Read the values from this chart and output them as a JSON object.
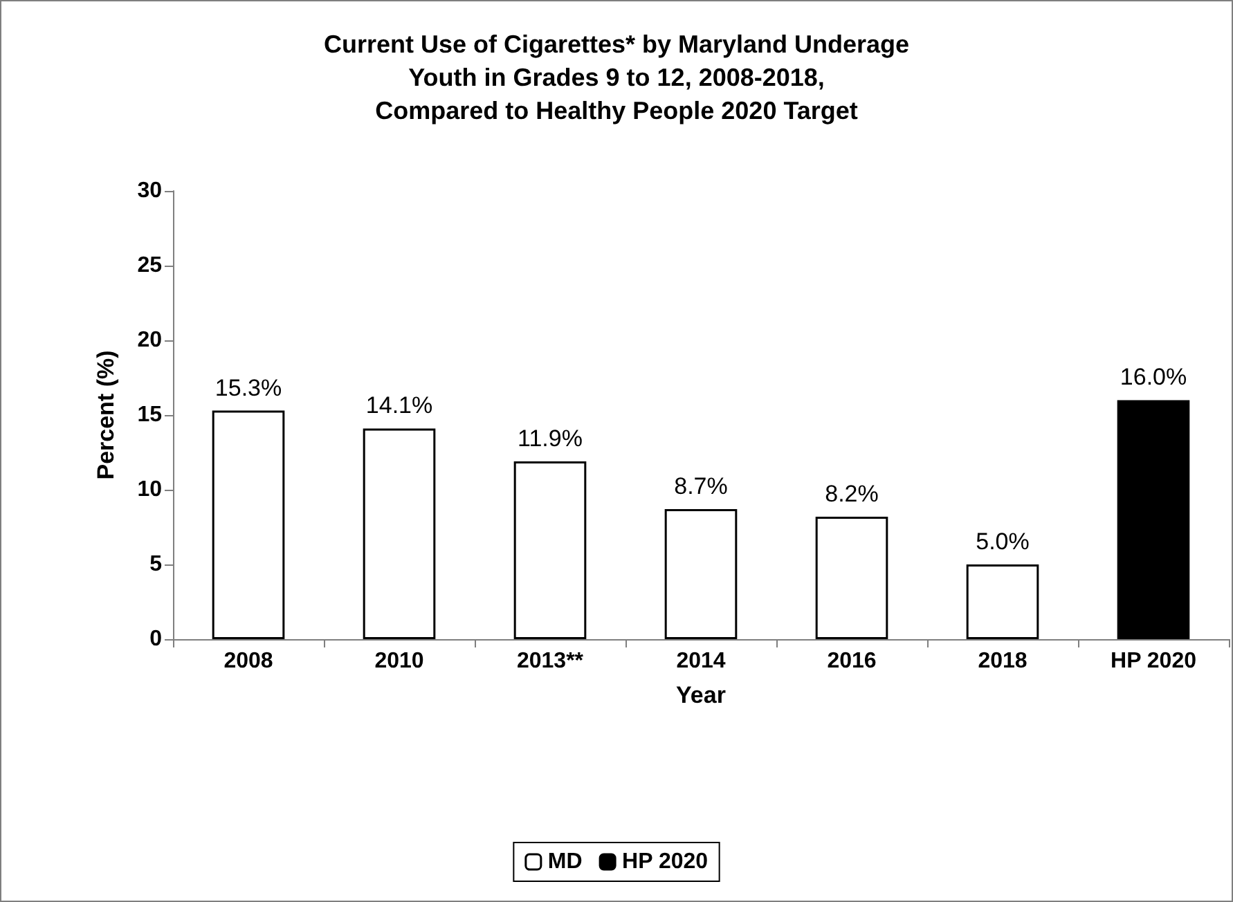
{
  "chart_data": {
    "type": "bar",
    "title": "Current Use of Cigarettes* by Maryland Underage\nYouth in Grades 9 to 12, 2008-2018,\nCompared to Healthy People 2020 Target",
    "xlabel": "Year",
    "ylabel": "Percent (%)",
    "categories": [
      "2008",
      "2010",
      "2013**",
      "2014",
      "2016",
      "2018",
      "HP 2020"
    ],
    "series": [
      {
        "name": "MD",
        "color": "#ffffff",
        "values": [
          15.3,
          14.1,
          11.9,
          8.7,
          8.2,
          5.0,
          null
        ],
        "value_labels": [
          "15.3%",
          "14.1%",
          "11.9%",
          "8.7%",
          "8.2%",
          "5.0%",
          null
        ]
      },
      {
        "name": "HP 2020",
        "color": "#000000",
        "values": [
          null,
          null,
          null,
          null,
          null,
          null,
          16.0
        ],
        "value_labels": [
          null,
          null,
          null,
          null,
          null,
          null,
          "16.0%"
        ]
      }
    ],
    "ylim": [
      0,
      30
    ],
    "yticks": [
      0,
      5,
      10,
      15,
      20,
      25,
      30
    ],
    "grid": false,
    "legend": "bottom"
  }
}
